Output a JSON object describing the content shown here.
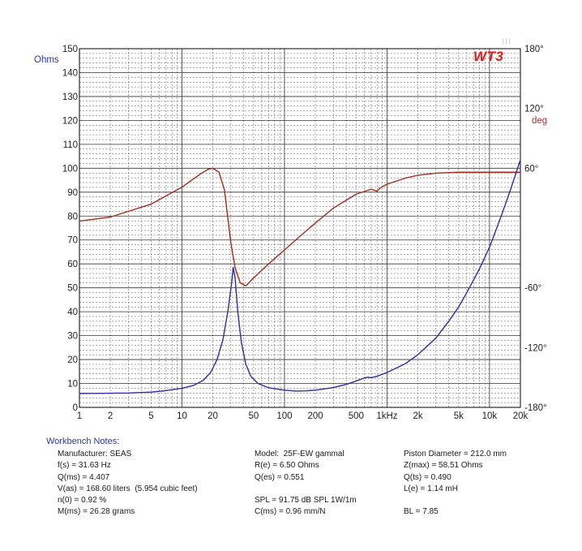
{
  "badge": "WT3",
  "badge_dots": "| | |",
  "chart_data": {
    "type": "line",
    "xscale": "log",
    "xlim": [
      1,
      20000
    ],
    "ylim": [
      0,
      150
    ],
    "y2lim": [
      -180,
      180
    ],
    "grid": true,
    "ylabel": "Ohms",
    "y2label": "deg",
    "x_ticks": [
      {
        "v": 1,
        "label": "1"
      },
      {
        "v": 2,
        "label": "2"
      },
      {
        "v": 5,
        "label": "5"
      },
      {
        "v": 10,
        "label": "10"
      },
      {
        "v": 20,
        "label": "20"
      },
      {
        "v": 50,
        "label": "50"
      },
      {
        "v": 100,
        "label": "100"
      },
      {
        "v": 200,
        "label": "200"
      },
      {
        "v": 500,
        "label": "500"
      },
      {
        "v": 1000,
        "label": "1kHz"
      },
      {
        "v": 2000,
        "label": "2k"
      },
      {
        "v": 5000,
        "label": "5k"
      },
      {
        "v": 10000,
        "label": "10k"
      },
      {
        "v": 20000,
        "label": "20k"
      }
    ],
    "y_ticks": [
      0,
      10,
      20,
      30,
      40,
      50,
      60,
      70,
      80,
      90,
      100,
      110,
      120,
      130,
      140,
      150
    ],
    "y2_ticks": [
      {
        "v": 180,
        "label": "180°"
      },
      {
        "v": 120,
        "label": "120°"
      },
      {
        "v": 60,
        "label": "60°"
      },
      {
        "v": -60,
        "label": "-60°"
      },
      {
        "v": -120,
        "label": "-120°"
      },
      {
        "v": -180,
        "label": "-180°"
      }
    ],
    "series": [
      {
        "name_hidden": "impedance",
        "color": "#2b2fa0",
        "axis": "left",
        "points": [
          [
            1,
            5.8
          ],
          [
            2,
            5.9
          ],
          [
            3,
            6.0
          ],
          [
            5,
            6.4
          ],
          [
            7,
            7.0
          ],
          [
            10,
            8.0
          ],
          [
            13,
            9.2
          ],
          [
            16,
            11.2
          ],
          [
            19,
            14.5
          ],
          [
            22,
            20
          ],
          [
            25,
            28
          ],
          [
            28,
            40
          ],
          [
            30.5,
            52
          ],
          [
            31.6,
            58.5
          ],
          [
            33,
            54
          ],
          [
            35,
            40
          ],
          [
            38,
            27
          ],
          [
            42,
            18
          ],
          [
            47,
            13
          ],
          [
            55,
            10
          ],
          [
            70,
            8.2
          ],
          [
            100,
            7.2
          ],
          [
            130,
            6.8
          ],
          [
            160,
            6.9
          ],
          [
            200,
            7.2
          ],
          [
            300,
            8.3
          ],
          [
            400,
            9.6
          ],
          [
            500,
            11.0
          ],
          [
            600,
            12.3
          ],
          [
            650,
            12.6
          ],
          [
            700,
            12.4
          ],
          [
            800,
            13.0
          ],
          [
            1000,
            14.6
          ],
          [
            1500,
            18.2
          ],
          [
            2000,
            22
          ],
          [
            3000,
            29
          ],
          [
            4000,
            36
          ],
          [
            5000,
            42
          ],
          [
            6000,
            48
          ],
          [
            8000,
            58
          ],
          [
            10000,
            67
          ],
          [
            13000,
            80
          ],
          [
            16000,
            91
          ],
          [
            20000,
            103.5
          ]
        ]
      },
      {
        "name_hidden": "phase",
        "color": "#a62b1e",
        "axis": "right",
        "points": [
          [
            1,
            7
          ],
          [
            2,
            11
          ],
          [
            5,
            24
          ],
          [
            10,
            41
          ],
          [
            15,
            54
          ],
          [
            18,
            59
          ],
          [
            20,
            60
          ],
          [
            23,
            56
          ],
          [
            26,
            38
          ],
          [
            28,
            10
          ],
          [
            30,
            -15
          ],
          [
            33,
            -40
          ],
          [
            37,
            -55
          ],
          [
            42,
            -58
          ],
          [
            50,
            -50
          ],
          [
            70,
            -36
          ],
          [
            100,
            -22
          ],
          [
            150,
            -6
          ],
          [
            200,
            5
          ],
          [
            300,
            20
          ],
          [
            500,
            34
          ],
          [
            700,
            39
          ],
          [
            800,
            37
          ],
          [
            850,
            40
          ],
          [
            1000,
            44
          ],
          [
            1500,
            50
          ],
          [
            2000,
            53
          ],
          [
            3000,
            55
          ],
          [
            5000,
            56
          ],
          [
            10000,
            56
          ],
          [
            20000,
            56
          ]
        ]
      }
    ]
  },
  "notes": {
    "title": "Workbench Notes:",
    "col1": [
      "Manufacturer: SEAS",
      "f(s) = 31.63 Hz",
      "Q(ms) = 4.407",
      "V(as) = 168.60 liters  (5.954 cubic feet)",
      "n(0) = 0.92 %",
      "M(ms) = 26.28 grams"
    ],
    "col2": [
      "Model:  25F-EW gammal",
      "R(e) = 6.50 Ohms",
      "Q(es) = 0.551",
      "SPL = 91.75 dB SPL 1W/1m",
      "C(ms) = 0.96 mm/N"
    ],
    "col3": [
      "Piston Diameter = 212.0 mm",
      "Z(max) = 58.51 Ohms",
      "Q(ts) = 0.490",
      "L(e) = 1.14 mH",
      "BL = 7.85"
    ]
  }
}
